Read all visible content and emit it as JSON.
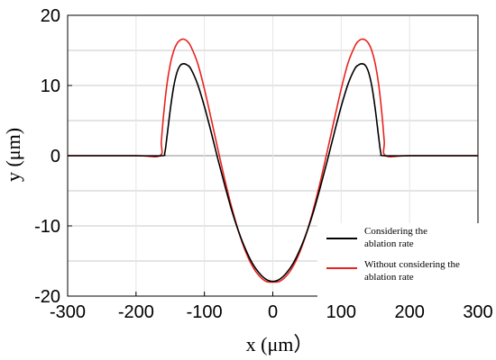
{
  "chart_data": {
    "type": "line",
    "xlabel": "x (μm）",
    "ylabel": "y (μm)",
    "xlim": [
      -300,
      300
    ],
    "ylim": [
      -20,
      20
    ],
    "xticks": [
      -300,
      -200,
      -100,
      0,
      100,
      200,
      300
    ],
    "xtick_labels": [
      "-300",
      "-200",
      "-100",
      "0",
      "100",
      "200",
      "300"
    ],
    "yticks": [
      -20,
      -10,
      0,
      10,
      20
    ],
    "ytick_labels": [
      "-20",
      "-10",
      "0",
      "10",
      "20"
    ],
    "grid": "horizontal",
    "legend_position": "bottom-right",
    "series": [
      {
        "name_lines": [
          "Considering the",
          "ablation rate"
        ],
        "color": "#000000",
        "x": [
          -300,
          -200,
          -162,
          -158,
          -155,
          -150,
          -145,
          -140,
          -135,
          -130,
          -125,
          -120,
          -110,
          -100,
          -90,
          -80,
          -70,
          -60,
          -50,
          -40,
          -30,
          -20,
          -10,
          0,
          10,
          20,
          30,
          40,
          50,
          60,
          70,
          80,
          90,
          100,
          110,
          120,
          125,
          130,
          135,
          140,
          145,
          150,
          155,
          158,
          162,
          200,
          300
        ],
        "y": [
          0,
          0,
          0,
          0.4,
          2.5,
          6.5,
          9.8,
          11.9,
          12.9,
          13.1,
          12.9,
          12.4,
          10.2,
          7.0,
          3.3,
          -0.6,
          -4.3,
          -7.8,
          -10.8,
          -13.3,
          -15.3,
          -16.7,
          -17.6,
          -17.9,
          -17.6,
          -16.7,
          -15.3,
          -13.3,
          -10.8,
          -7.8,
          -4.3,
          -0.6,
          3.3,
          7.0,
          10.2,
          12.4,
          12.9,
          13.1,
          12.9,
          11.9,
          9.8,
          6.5,
          2.5,
          0.4,
          0,
          0,
          0
        ]
      },
      {
        "name_lines": [
          "Without considering the",
          "ablation rate"
        ],
        "color": "#e8231f",
        "x": [
          -300,
          -200,
          -165,
          -163,
          -160,
          -155,
          -150,
          -145,
          -140,
          -135,
          -130,
          -125,
          -120,
          -110,
          -100,
          -90,
          -80,
          -70,
          -60,
          -50,
          -40,
          -30,
          -20,
          -10,
          0,
          10,
          20,
          30,
          40,
          50,
          60,
          70,
          80,
          90,
          100,
          110,
          120,
          125,
          130,
          135,
          140,
          145,
          150,
          155,
          160,
          163,
          165,
          200,
          300
        ],
        "y": [
          0,
          0,
          0,
          2.0,
          5.5,
          10.0,
          13.0,
          14.9,
          16.0,
          16.5,
          16.6,
          16.3,
          15.6,
          13.2,
          9.5,
          5.2,
          0.8,
          -3.5,
          -7.4,
          -10.8,
          -13.6,
          -15.7,
          -17.1,
          -17.9,
          -18.0,
          -17.9,
          -17.1,
          -15.7,
          -13.6,
          -10.8,
          -7.4,
          -3.5,
          0.8,
          5.2,
          9.5,
          13.2,
          15.6,
          16.3,
          16.6,
          16.5,
          16.0,
          14.9,
          13.0,
          10.0,
          5.5,
          2.0,
          0,
          0,
          0
        ]
      }
    ]
  }
}
